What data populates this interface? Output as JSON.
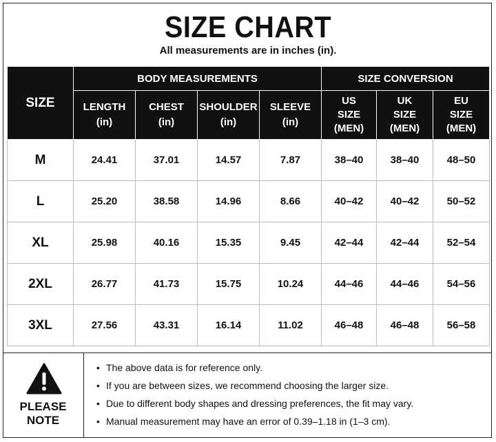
{
  "title": "SIZE CHART",
  "subtitle": "All measurements are in inches (in).",
  "table": {
    "size_header": "SIZE",
    "group_headers": {
      "body": "BODY MEASUREMENTS",
      "conversion": "SIZE CONVERSION"
    },
    "columns": {
      "length": "LENGTH",
      "chest": "CHEST",
      "shoulder": "SHOULDER",
      "sleeve": "SLEEVE",
      "unit": "(in)",
      "us": [
        "US",
        "SIZE",
        "(MEN)"
      ],
      "uk": [
        "UK",
        "SIZE",
        "(MEN)"
      ],
      "eu": [
        "EU",
        "SIZE",
        "(MEN)"
      ]
    },
    "rows": [
      [
        "M",
        "24.41",
        "37.01",
        "14.57",
        "7.87",
        "38–40",
        "38–40",
        "48–50"
      ],
      [
        "L",
        "25.20",
        "38.58",
        "14.96",
        "8.66",
        "40–42",
        "40–42",
        "50–52"
      ],
      [
        "XL",
        "25.98",
        "40.16",
        "15.35",
        "9.45",
        "42–44",
        "42–44",
        "52–54"
      ],
      [
        "2XL",
        "26.77",
        "41.73",
        "15.75",
        "10.24",
        "44–46",
        "44–46",
        "54–56"
      ],
      [
        "3XL",
        "27.56",
        "43.31",
        "16.14",
        "11.02",
        "46–48",
        "46–48",
        "56–58"
      ]
    ]
  },
  "note": {
    "icon": "warning-icon",
    "label_line1": "PLEASE",
    "label_line2": "NOTE",
    "bullet": "•",
    "items": [
      "The above data is for reference only.",
      "If you are between sizes, we recommend choosing the larger size.",
      "Due to different body shapes and dressing preferences, the fit may vary.",
      "Manual measurement may have an error of 0.39–1.18 in (1–3 cm)."
    ]
  }
}
